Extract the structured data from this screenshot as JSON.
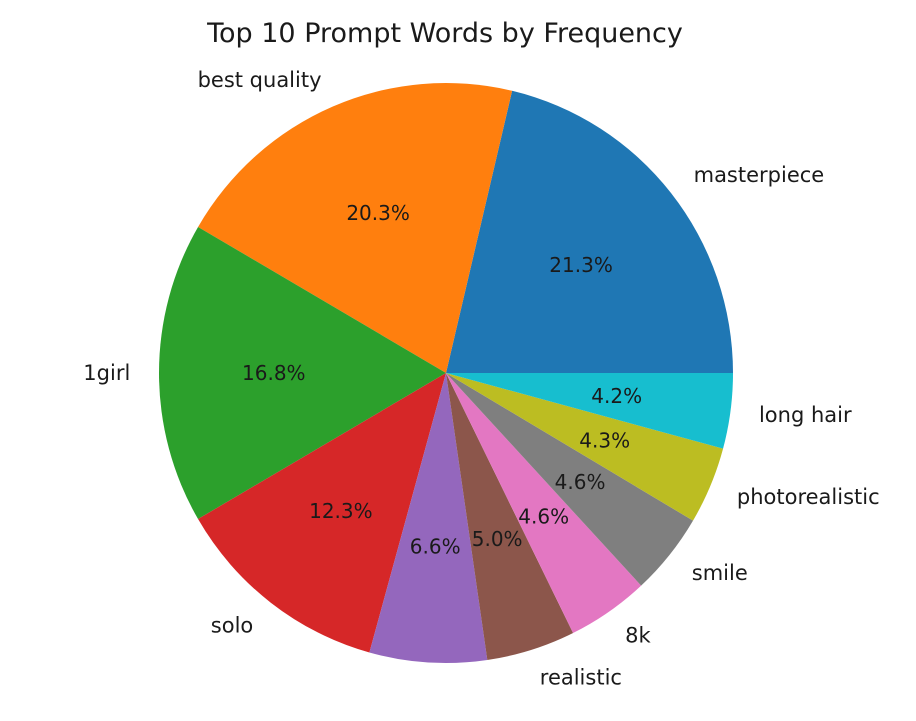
{
  "chart_data": {
    "type": "pie",
    "title": "Top 10 Prompt Words by Frequency",
    "categories": [
      "masterpiece",
      "best quality",
      "1girl",
      "solo",
      "",
      "realistic",
      "8k",
      "smile",
      "photorealistic",
      "long hair"
    ],
    "values": [
      21.3,
      20.3,
      16.8,
      12.3,
      6.6,
      5.0,
      4.6,
      4.6,
      4.3,
      4.2
    ],
    "percent_labels": [
      "21.3%",
      "20.3%",
      "16.8%",
      "12.3%",
      "6.6%",
      "5.0%",
      "4.6%",
      "4.6%",
      "4.3%",
      "4.2%"
    ],
    "colors": [
      "#1f77b4",
      "#ff7f0e",
      "#2ca02c",
      "#d62728",
      "#9467bd",
      "#8c564b",
      "#e377c2",
      "#7f7f7f",
      "#bcbd22",
      "#17becf"
    ],
    "start_angle_deg": 0,
    "direction": "counterclockwise",
    "legend": "none"
  }
}
